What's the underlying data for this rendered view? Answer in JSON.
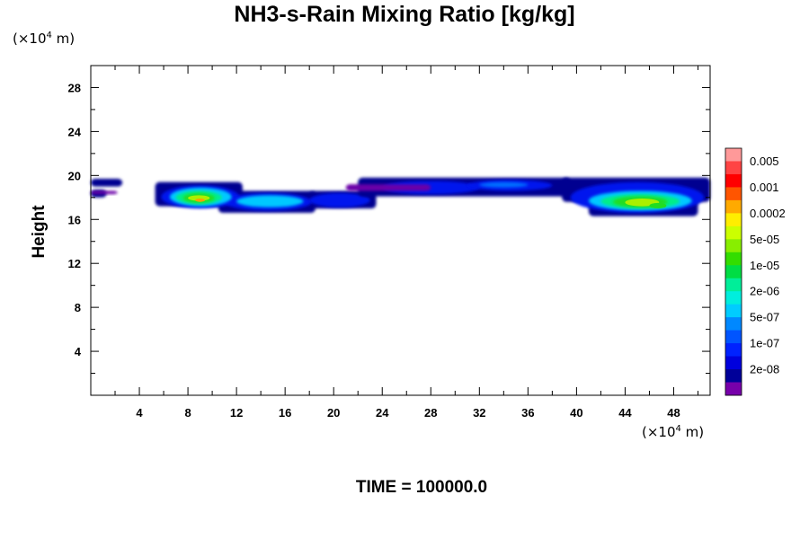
{
  "chart_data": {
    "type": "heatmap",
    "title": "NH3-s-Rain Mixing Ratio [kg/kg]",
    "ylabel": "Height",
    "xlabel": "",
    "x_unit": "(×10⁴ m)",
    "y_unit": "(×10⁴ m)",
    "x_range": [
      0,
      51
    ],
    "y_range": [
      0,
      30
    ],
    "x_ticks": [
      "4",
      "8",
      "12",
      "16",
      "20",
      "24",
      "28",
      "32",
      "36",
      "40",
      "44",
      "48"
    ],
    "y_ticks": [
      "4",
      "8",
      "12",
      "16",
      "20",
      "24",
      "28"
    ],
    "colorbar": {
      "labels": [
        "0.005",
        "0.001",
        "0.0002",
        "5e-05",
        "1e-05",
        "2e-06",
        "5e-07",
        "1e-07",
        "2e-08"
      ],
      "colors": [
        "#ff9999",
        "#ff4444",
        "#ff0000",
        "#ff5500",
        "#ffaa00",
        "#ffee00",
        "#ccff00",
        "#88ee00",
        "#33dd00",
        "#00dd44",
        "#00ee99",
        "#00eedd",
        "#00ccff",
        "#0088ff",
        "#0055ff",
        "#0022ff",
        "#0000dd",
        "#000099",
        "#7700aa"
      ]
    },
    "regions": [
      {
        "level": "2e-08",
        "x": [
          0,
          3
        ],
        "y": [
          17.8,
          19.6
        ]
      },
      {
        "level": "1e-05",
        "x": [
          5.5,
          11.5
        ],
        "y": [
          16.8,
          19.2
        ]
      },
      {
        "level": "2e-06",
        "x": [
          11,
          23
        ],
        "y": [
          16.5,
          18.8
        ]
      },
      {
        "level": "1e-07",
        "x": [
          23,
          39
        ],
        "y": [
          17.8,
          19.8
        ]
      },
      {
        "level": "1e-05",
        "x": [
          39,
          51
        ],
        "y": [
          16.3,
          19.6
        ]
      }
    ]
  },
  "time_label": "TIME = 100000.0"
}
